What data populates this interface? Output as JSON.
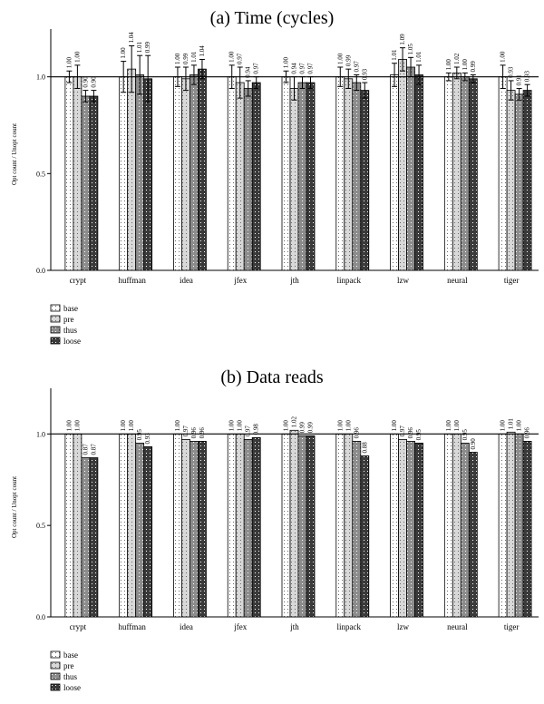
{
  "chart_data": [
    {
      "type": "bar",
      "title": "(a) Time (cycles)",
      "xlabel": "",
      "ylabel": "Opt count / Unopt count",
      "ylim": [
        0,
        1.2
      ],
      "yticks": [
        "0.0",
        "0.5",
        "1.0"
      ],
      "reference_line": 1.0,
      "grid": false,
      "legend": "below-left",
      "categories": [
        "crypt",
        "huffman",
        "idea",
        "jfex",
        "jth",
        "linpack",
        "lzw",
        "neural",
        "tiger"
      ],
      "series": [
        {
          "name": "base",
          "fill": "#ffffff",
          "values": [
            1.0,
            1.0,
            1.0,
            1.0,
            1.0,
            1.0,
            1.01,
            1.0,
            1.0
          ],
          "labels": [
            "1.00",
            "1.00",
            "1.00",
            "1.00",
            "1.00",
            "1.00",
            "1.01",
            "1.00",
            "1.00"
          ]
        },
        {
          "name": "pre",
          "fill": "#d8d8d8",
          "values": [
            1.0,
            1.04,
            0.99,
            0.97,
            0.94,
            0.99,
            1.09,
            1.02,
            0.93
          ],
          "labels": [
            "1.00",
            "1.04",
            "0.99",
            "0.97",
            "0.94",
            "0.99",
            "1.09",
            "1.02",
            "0.93"
          ]
        },
        {
          "name": "thus",
          "fill": "#8c8c8c",
          "values": [
            0.9,
            1.01,
            1.01,
            0.94,
            0.97,
            0.97,
            1.05,
            1.0,
            0.91
          ],
          "labels": [
            "0.90",
            "1.01",
            "1.01",
            "0.94",
            "0.97",
            "0.97",
            "1.05",
            "1.00",
            "0.91"
          ]
        },
        {
          "name": "loose",
          "fill": "#3a3a3a",
          "values": [
            0.9,
            0.99,
            1.04,
            0.97,
            0.97,
            0.93,
            1.01,
            0.99,
            0.93
          ],
          "labels": [
            "0.90",
            "0.99",
            "1.04",
            "0.97",
            "0.97",
            "0.93",
            "1.01",
            "0.99",
            "0.93"
          ]
        }
      ],
      "error_bars": {
        "pre": [
          0.06,
          0.12,
          0.06,
          0.08,
          0.06,
          0.05,
          0.06,
          0.03,
          0.05
        ],
        "thus": [
          0.03,
          0.1,
          0.05,
          0.04,
          0.03,
          0.04,
          0.05,
          0.02,
          0.03
        ],
        "loose": [
          0.03,
          0.12,
          0.05,
          0.03,
          0.03,
          0.04,
          0.05,
          0.02,
          0.03
        ],
        "base": [
          0.03,
          0.08,
          0.05,
          0.06,
          0.03,
          0.05,
          0.06,
          0.02,
          0.06
        ]
      }
    },
    {
      "type": "bar",
      "title": "(b) Data reads",
      "xlabel": "",
      "ylabel": "Opt count / Unopt count",
      "ylim": [
        0,
        1.2
      ],
      "yticks": [
        "0.0",
        "0.5",
        "1.0"
      ],
      "reference_line": 1.0,
      "grid": false,
      "legend": "below-left",
      "categories": [
        "crypt",
        "huffman",
        "idea",
        "jfex",
        "jth",
        "linpack",
        "lzw",
        "neural",
        "tiger"
      ],
      "series": [
        {
          "name": "base",
          "fill": "#ffffff",
          "values": [
            1.0,
            1.0,
            1.0,
            1.0,
            1.0,
            1.0,
            1.0,
            1.0,
            1.0
          ],
          "labels": [
            "1.00",
            "1.00",
            "1.00",
            "1.00",
            "1.00",
            "1.00",
            "1.00",
            "1.00",
            "1.00"
          ]
        },
        {
          "name": "pre",
          "fill": "#d8d8d8",
          "values": [
            1.0,
            1.0,
            0.97,
            1.0,
            1.02,
            1.0,
            0.97,
            1.0,
            1.01
          ],
          "labels": [
            "1.00",
            "1.00",
            "0.97",
            "1.00",
            "1.02",
            "1.00",
            "0.97",
            "1.00",
            "1.01"
          ]
        },
        {
          "name": "thus",
          "fill": "#8c8c8c",
          "values": [
            0.87,
            0.95,
            0.96,
            0.97,
            0.99,
            0.96,
            0.96,
            0.95,
            1.0
          ],
          "labels": [
            "0.87",
            "0.95",
            "0.96",
            "0.97",
            "0.99",
            "0.96",
            "0.96",
            "0.95",
            "1.00"
          ]
        },
        {
          "name": "loose",
          "fill": "#3a3a3a",
          "values": [
            0.87,
            0.93,
            0.96,
            0.98,
            0.99,
            0.88,
            0.95,
            0.9,
            0.96
          ],
          "labels": [
            "0.87",
            "0.93",
            "0.96",
            "0.98",
            "0.99",
            "0.88",
            "0.95",
            "0.90",
            "0.96"
          ]
        }
      ]
    }
  ]
}
